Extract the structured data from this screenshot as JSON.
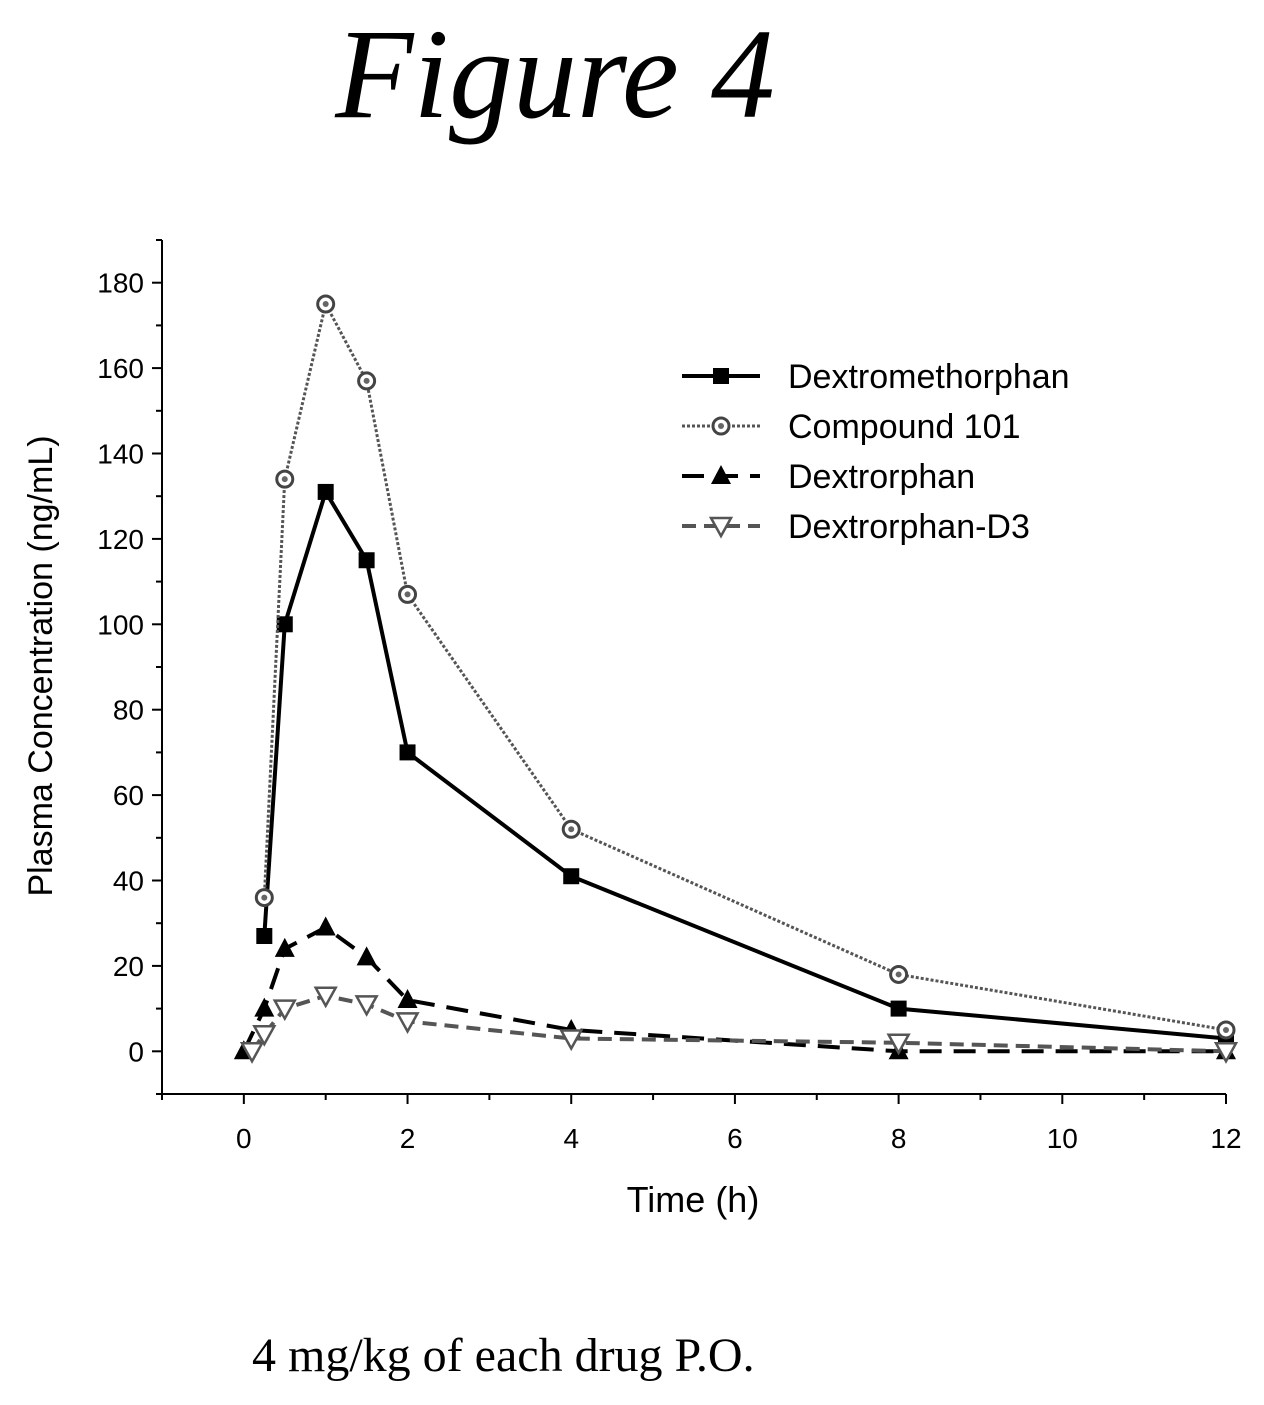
{
  "figure_title": "Figure 4",
  "caption": "4 mg/kg of each drug P.O.",
  "chart_data": {
    "type": "line",
    "title": "",
    "xlabel": "Time (h)",
    "ylabel": "Plasma Concentration (ng/mL)",
    "xlim": [
      -1,
      12
    ],
    "ylim": [
      -10,
      190
    ],
    "xticks": [
      0,
      2,
      4,
      6,
      8,
      10,
      12
    ],
    "yticks": [
      0,
      20,
      40,
      60,
      80,
      100,
      120,
      140,
      160,
      180
    ],
    "grid": false,
    "legend_position": "top-right",
    "series": [
      {
        "name": "Dextromethorphan",
        "marker": "square",
        "line": "solid",
        "x": [
          0.25,
          0.5,
          1,
          1.5,
          2,
          4,
          8,
          12
        ],
        "y": [
          27,
          100,
          131,
          115,
          70,
          41,
          10,
          3
        ]
      },
      {
        "name": "Compound 101",
        "marker": "circle",
        "line": "dotted",
        "x": [
          0.25,
          0.5,
          1,
          1.5,
          2,
          4,
          8,
          12
        ],
        "y": [
          36,
          134,
          175,
          157,
          107,
          52,
          18,
          5
        ]
      },
      {
        "name": "Dextrorphan",
        "marker": "triangle",
        "line": "dashed",
        "x": [
          0,
          0.25,
          0.5,
          1,
          1.5,
          2,
          4,
          8,
          12
        ],
        "y": [
          0,
          10,
          24,
          29,
          22,
          12,
          5,
          0,
          0
        ]
      },
      {
        "name": "Dextrorphan-D3",
        "marker": "triangle-down",
        "line": "dotted",
        "x": [
          0.1,
          0.25,
          0.5,
          1,
          1.5,
          2,
          4,
          8,
          12
        ],
        "y": [
          0,
          4,
          10,
          13,
          11,
          7,
          3,
          2,
          0
        ]
      }
    ]
  }
}
